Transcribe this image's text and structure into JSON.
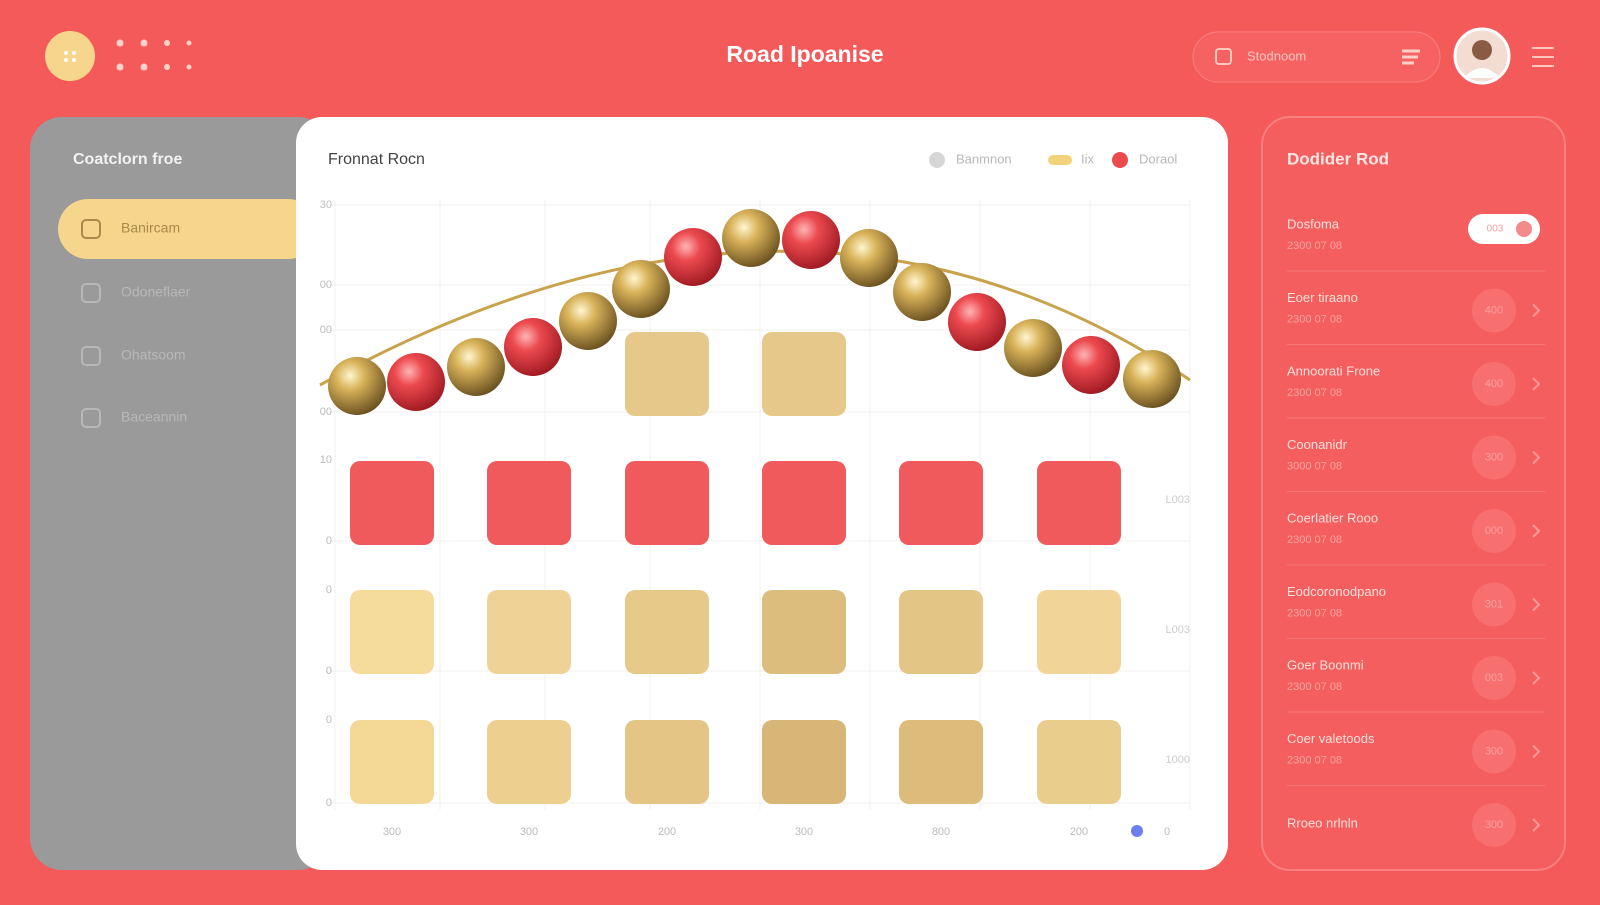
{
  "header": {
    "title": "Road Ipoanise",
    "search": "Stodnoom"
  },
  "sidebar": {
    "title": "Coatclorn froe",
    "items": [
      "Banircam",
      "Odoneflaer",
      "Ohatsoom",
      "Baceannin"
    ]
  },
  "panel": {
    "title": "Fronnat Rocn",
    "legend": [
      "Banmnon",
      "Iix",
      "Doraol"
    ],
    "y_labels": [
      "30",
      "00",
      "00",
      "00",
      "10",
      "0",
      "0",
      "0",
      "0",
      "0"
    ],
    "right_labels": [
      "L003",
      "L003",
      "1000"
    ],
    "x_labels": [
      "300",
      "300",
      "200",
      "300",
      "800",
      "200"
    ],
    "corner_label": "0"
  },
  "list": {
    "title": "Dodider Rod",
    "items": [
      {
        "name": "Dosfoma",
        "sub": "2300 07 08",
        "badge": "003"
      },
      {
        "name": "Eoer tiraano",
        "sub": "2300 07 08",
        "badge": "400"
      },
      {
        "name": "Annoorati Frone",
        "sub": "2300 07 08",
        "badge": "400"
      },
      {
        "name": "Coonanidr",
        "sub": "3000 07 08",
        "badge": "300"
      },
      {
        "name": "Coerlatier Rooo",
        "sub": "2300 07 08",
        "badge": "000"
      },
      {
        "name": "Eodcoronodpano",
        "sub": "2300 07 08",
        "badge": "301"
      },
      {
        "name": "Goer Boonmi",
        "sub": "2300 07 08",
        "badge": "003"
      },
      {
        "name": "Coer valetoods",
        "sub": "2300 07 08",
        "badge": "300"
      },
      {
        "name": "Rroeo nrlnln",
        "sub": "",
        "badge": "300"
      }
    ]
  }
}
